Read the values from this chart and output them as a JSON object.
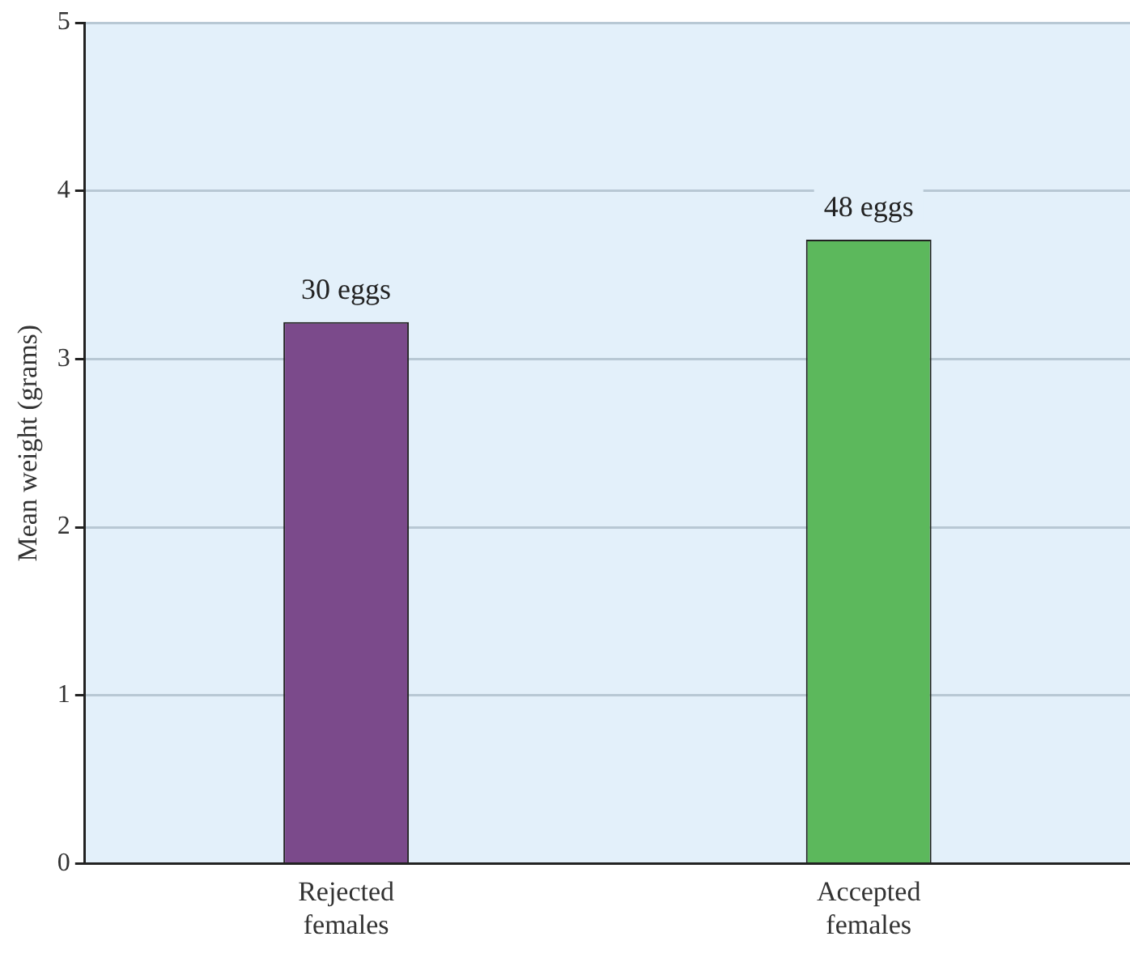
{
  "chart_data": {
    "type": "bar",
    "ylabel": "Mean weight (grams)",
    "categories": [
      "Rejected females",
      "Accepted females"
    ],
    "values": [
      3.22,
      3.71
    ],
    "colors": [
      "#7b4a8b",
      "#5cb85c"
    ],
    "annotations": [
      {
        "text": "30 eggs",
        "x": "Rejected females",
        "y": 3.22
      },
      {
        "text": "48 eggs",
        "x": "Accepted females",
        "y": 3.71
      }
    ],
    "ylim": [
      0,
      5
    ],
    "yticks": [
      0,
      1,
      2,
      3,
      4,
      5
    ],
    "grid": "y",
    "legend": false
  }
}
